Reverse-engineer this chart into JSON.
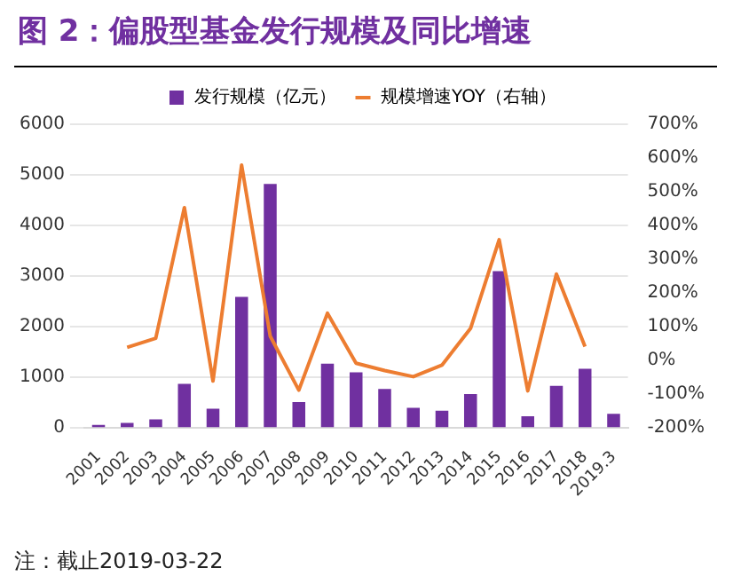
{
  "chart_data": {
    "type": "bar",
    "title": "图 2：偏股型基金发行规模及同比增速",
    "categories": [
      "2001",
      "2002",
      "2003",
      "2004",
      "2005",
      "2006",
      "2007",
      "2008",
      "2009",
      "2010",
      "2011",
      "2012",
      "2013",
      "2014",
      "2015",
      "2016",
      "2017",
      "2018",
      "2019.3"
    ],
    "series": [
      {
        "name": "发行规模（亿元）",
        "color": "#7030a0",
        "values": [
          60,
          100,
          170,
          870,
          380,
          2590,
          4820,
          510,
          1270,
          1100,
          770,
          400,
          340,
          670,
          3100,
          230,
          830,
          1170,
          280
        ]
      },
      {
        "name": "规模增速YOY（右轴）",
        "type": "line",
        "axis": "y2",
        "color": "#ed7d31",
        "values": [
          null,
          39,
          66,
          453,
          -61,
          579,
          72,
          -88,
          140,
          -8,
          -30,
          -48,
          -14,
          95,
          358,
          -90,
          256,
          41,
          null
        ]
      }
    ],
    "ylim": [
      0,
      6000
    ],
    "yticks": [
      0,
      1000,
      2000,
      3000,
      4000,
      5000,
      6000
    ],
    "y2lim": [
      -200,
      700
    ],
    "y2ticks": [
      {
        "value": -200,
        "label": "-200%"
      },
      {
        "value": -100,
        "label": "-100%"
      },
      {
        "value": 0,
        "label": "0%"
      },
      {
        "value": 100,
        "label": "100%"
      },
      {
        "value": 200,
        "label": "200%"
      },
      {
        "value": 300,
        "label": "300%"
      },
      {
        "value": 400,
        "label": "400%"
      },
      {
        "value": 500,
        "label": "500%"
      },
      {
        "value": 600,
        "label": "600%"
      },
      {
        "value": 700,
        "label": "700%"
      }
    ],
    "grid": "y",
    "legend": "top",
    "marker": "none",
    "annotations": [
      "注：截止2019-03-22"
    ]
  }
}
